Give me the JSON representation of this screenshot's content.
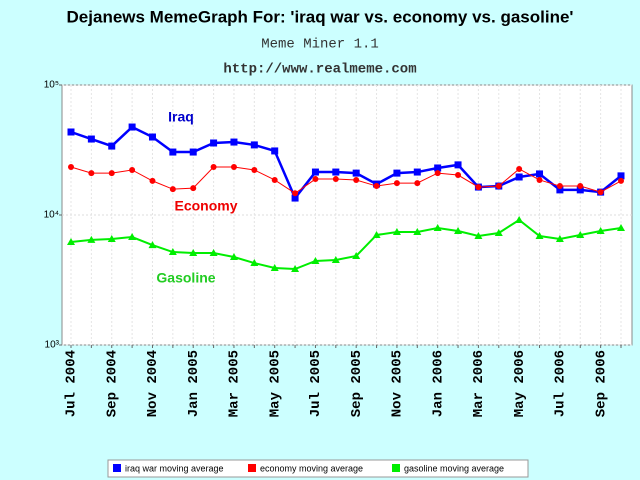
{
  "chart_data": {
    "type": "line",
    "title": "Dejanews MemeGraph For: 'iraq war vs. economy vs. gasoline'",
    "subtitle": "Meme Miner 1.1",
    "url": "http://www.realmeme.com",
    "categories": [
      "Jul 2004",
      null,
      "Sep 2004",
      null,
      "Nov 2004",
      null,
      "Jan 2005",
      null,
      "Mar 2005",
      null,
      "May 2005",
      null,
      "Jul 2005",
      null,
      "Sep 2005",
      null,
      "Nov 2005",
      null,
      "Jan 2006",
      null,
      "Mar 2006",
      null,
      "May 2006",
      null,
      "Jul 2006",
      null,
      "Sep 2006",
      null
    ],
    "log_scale": true,
    "ylim": [
      1000,
      100000
    ],
    "yticks": [
      {
        "value": 1000,
        "label": "10³"
      },
      {
        "value": 10000,
        "label": "10⁴"
      },
      {
        "value": 100000,
        "label": "10⁵"
      }
    ],
    "grid": true,
    "legend": "bottom",
    "series": [
      {
        "name": "iraq war moving average",
        "color": "#0000ff",
        "marker": "square",
        "values": [
          43500,
          38400,
          33900,
          47500,
          39800,
          30500,
          30500,
          35800,
          36400,
          34600,
          31100,
          13500,
          21400,
          21400,
          21000,
          17300,
          21000,
          21400,
          23000,
          24300,
          16400,
          16700,
          19600,
          20700,
          15600,
          15600,
          15000,
          20000
        ]
      },
      {
        "name": "economy moving average",
        "color": "#ff0000",
        "marker": "circle",
        "values": [
          23400,
          21000,
          21000,
          22200,
          18300,
          15800,
          16100,
          23400,
          23400,
          22200,
          18600,
          14700,
          18900,
          18900,
          18600,
          16700,
          17600,
          17600,
          21000,
          20300,
          16400,
          16700,
          22600,
          18600,
          16700,
          16700,
          15000,
          18300
        ]
      },
      {
        "name": "gasoline moving average",
        "color": "#00ee00",
        "marker": "triangle",
        "values": [
          6200,
          6430,
          6540,
          6770,
          5870,
          5190,
          5100,
          5100,
          4750,
          4270,
          3910,
          3840,
          4430,
          4510,
          4840,
          7020,
          7400,
          7400,
          7940,
          7530,
          6890,
          7270,
          9150,
          6890,
          6540,
          7020,
          7530,
          7940
        ]
      }
    ],
    "annotations": [
      {
        "text": "Iraq",
        "color": "#0000cc"
      },
      {
        "text": "Economy",
        "color": "#ee0000"
      },
      {
        "text": "Gasoline",
        "color": "#22cc22"
      }
    ]
  }
}
